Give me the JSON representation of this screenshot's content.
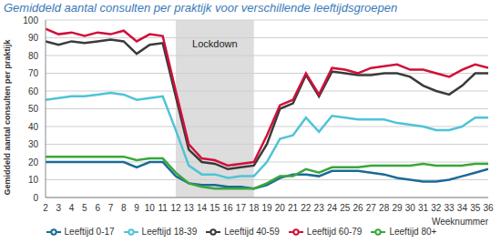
{
  "chart_data": {
    "type": "line",
    "title": "Gemiddeld aantal consulten per praktijk voor verschillende leeftijdsgroepen",
    "y_label": "Gemiddeld aantal consulten per praktijk",
    "x_label": "Weeknummer",
    "x": [
      2,
      3,
      4,
      5,
      6,
      7,
      8,
      9,
      10,
      11,
      12,
      13,
      14,
      15,
      16,
      17,
      18,
      19,
      20,
      21,
      22,
      23,
      24,
      25,
      26,
      27,
      28,
      29,
      30,
      31,
      32,
      33,
      34,
      35,
      36
    ],
    "xlim": [
      2,
      36
    ],
    "xticks": [
      2,
      3,
      4,
      5,
      6,
      7,
      8,
      9,
      10,
      11,
      12,
      13,
      14,
      15,
      16,
      17,
      18,
      19,
      20,
      21,
      22,
      23,
      24,
      25,
      26,
      27,
      28,
      29,
      30,
      31,
      32,
      33,
      34,
      35,
      36
    ],
    "ylim": [
      0,
      100
    ],
    "yticks": [
      0,
      10,
      20,
      30,
      40,
      50,
      60,
      70,
      80,
      90,
      100
    ],
    "grid": true,
    "legend": "bottom",
    "annotations": [
      {
        "x_start": 12,
        "x_end": 18,
        "label": "Lockdown"
      }
    ],
    "series": [
      {
        "name": "Leeftijd 0-17",
        "color": "#1a6b96",
        "values": [
          20,
          20,
          20,
          20,
          20,
          20,
          20,
          17,
          20,
          20,
          12,
          8,
          7,
          7,
          6,
          6,
          5,
          7,
          11,
          13,
          13,
          12,
          15,
          15,
          15,
          14,
          13,
          11,
          10,
          9,
          9,
          10,
          12,
          14,
          16
        ]
      },
      {
        "name": "Leeftijd 18-39",
        "color": "#4fc3d6",
        "values": [
          55,
          56,
          57,
          57,
          58,
          59,
          58,
          55,
          56,
          57,
          38,
          18,
          13,
          13,
          11,
          12,
          12,
          20,
          33,
          35,
          45,
          37,
          46,
          45,
          44,
          44,
          44,
          42,
          41,
          40,
          38,
          38,
          40,
          45,
          45
        ]
      },
      {
        "name": "Leeftijd 40-59",
        "color": "#3a3a3a",
        "values": [
          88,
          86,
          88,
          87,
          88,
          89,
          88,
          81,
          86,
          87,
          57,
          27,
          20,
          19,
          16,
          17,
          18,
          30,
          50,
          53,
          69,
          57,
          71,
          70,
          69,
          69,
          70,
          70,
          68,
          63,
          60,
          58,
          63,
          70,
          70
        ]
      },
      {
        "name": "Leeftijd 60-79",
        "color": "#d0103a",
        "values": [
          95,
          92,
          93,
          91,
          93,
          92,
          94,
          88,
          92,
          91,
          60,
          30,
          22,
          21,
          18,
          19,
          20,
          35,
          52,
          55,
          70,
          58,
          73,
          72,
          70,
          73,
          74,
          75,
          72,
          72,
          70,
          68,
          72,
          75,
          73
        ]
      },
      {
        "name": "Leeftijd 80+",
        "color": "#3aa63a",
        "values": [
          23,
          23,
          23,
          23,
          23,
          23,
          23,
          21,
          22,
          22,
          14,
          8,
          6,
          5,
          5,
          5,
          5,
          8,
          12,
          12,
          16,
          14,
          17,
          17,
          17,
          18,
          18,
          18,
          18,
          19,
          18,
          18,
          18,
          19,
          19
        ]
      }
    ]
  }
}
